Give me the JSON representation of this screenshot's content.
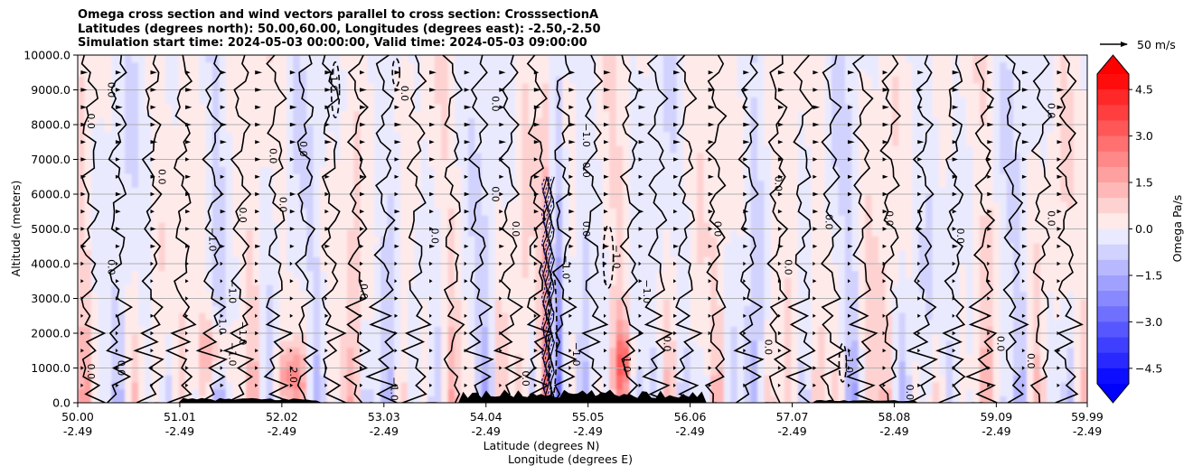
{
  "chart_data": {
    "type": "contour",
    "title_lines": [
      "Omega cross section and wind vectors parallel to cross section: CrosssectionA",
      "Latitudes (degrees north): 50.00,60.00, Longitudes (degrees east): -2.50,-2.50",
      "Simulation start time: 2024-05-03 00:00:00, Valid time: 2024-05-03 09:00:00"
    ],
    "ylabel": "Altitude (meters)",
    "xlabel_lat": "Latitude (degrees N)",
    "xlabel_lon": "Longitude (degrees E)",
    "ylim": [
      0,
      10000
    ],
    "y_ticks": [
      "0.0",
      "1000.0",
      "2000.0",
      "3000.0",
      "4000.0",
      "5000.0",
      "6000.0",
      "7000.0",
      "8000.0",
      "9000.0",
      "10000.0"
    ],
    "y_tick_values": [
      0,
      1000,
      2000,
      3000,
      4000,
      5000,
      6000,
      7000,
      8000,
      9000,
      10000
    ],
    "x_range": [
      50.0,
      59.99
    ],
    "x_ticks": [
      {
        "lat": "50.00",
        "lon": "-2.49",
        "value": 50.0
      },
      {
        "lat": "51.01",
        "lon": "-2.49",
        "value": 51.01
      },
      {
        "lat": "52.02",
        "lon": "-2.49",
        "value": 52.02
      },
      {
        "lat": "53.03",
        "lon": "-2.49",
        "value": 53.03
      },
      {
        "lat": "54.04",
        "lon": "-2.49",
        "value": 54.04
      },
      {
        "lat": "55.05",
        "lon": "-2.49",
        "value": 55.05
      },
      {
        "lat": "56.06",
        "lon": "-2.49",
        "value": 56.06
      },
      {
        "lat": "57.07",
        "lon": "-2.49",
        "value": 57.07
      },
      {
        "lat": "58.08",
        "lon": "-2.49",
        "value": 58.08
      },
      {
        "lat": "59.09",
        "lon": "-2.49",
        "value": 59.09
      },
      {
        "lat": "59.99",
        "lon": "-2.49",
        "value": 59.99
      }
    ],
    "grid": "horizontal",
    "vector_key": {
      "label": "50 m/s"
    },
    "colorbar": {
      "label": "Omega Pa/s",
      "range": [
        -5.0,
        5.0
      ],
      "extend": "both",
      "ticks": [
        {
          "value": 4.5,
          "label": "4.5"
        },
        {
          "value": 3.0,
          "label": "3.0"
        },
        {
          "value": 1.5,
          "label": "1.5"
        },
        {
          "value": 0.0,
          "label": "0.0"
        },
        {
          "value": -1.5,
          "label": "−1.5"
        },
        {
          "value": -3.0,
          "label": "−3.0"
        },
        {
          "value": -4.5,
          "label": "−4.5"
        }
      ],
      "levels": [
        {
          "lo": 4.5,
          "hi": 5.0,
          "color": "#ff0d0d"
        },
        {
          "lo": 4.0,
          "hi": 4.5,
          "color": "#ff2828"
        },
        {
          "lo": 3.5,
          "hi": 4.0,
          "color": "#ff3f3f"
        },
        {
          "lo": 3.0,
          "hi": 3.5,
          "color": "#ff5757"
        },
        {
          "lo": 2.5,
          "hi": 3.0,
          "color": "#ff7070"
        },
        {
          "lo": 2.0,
          "hi": 2.5,
          "color": "#ff8888"
        },
        {
          "lo": 1.5,
          "hi": 2.0,
          "color": "#ffa0a0"
        },
        {
          "lo": 1.0,
          "hi": 1.5,
          "color": "#ffb8b8"
        },
        {
          "lo": 0.5,
          "hi": 1.0,
          "color": "#ffd2d2"
        },
        {
          "lo": 0.0,
          "hi": 0.5,
          "color": "#ffeaea"
        },
        {
          "lo": -0.5,
          "hi": 0.0,
          "color": "#eaeaff"
        },
        {
          "lo": -1.0,
          "hi": -0.5,
          "color": "#d2d2ff"
        },
        {
          "lo": -1.5,
          "hi": -1.0,
          "color": "#b8b8ff"
        },
        {
          "lo": -2.0,
          "hi": -1.5,
          "color": "#a0a0ff"
        },
        {
          "lo": -2.5,
          "hi": -2.0,
          "color": "#8888ff"
        },
        {
          "lo": -3.0,
          "hi": -2.5,
          "color": "#7070ff"
        },
        {
          "lo": -3.5,
          "hi": -3.0,
          "color": "#5757ff"
        },
        {
          "lo": -4.0,
          "hi": -3.5,
          "color": "#3f3fff"
        },
        {
          "lo": -4.5,
          "hi": -4.0,
          "color": "#2828ff"
        },
        {
          "lo": -5.0,
          "hi": -4.5,
          "color": "#0d0dff"
        }
      ],
      "extend_max_color": "#ff0000",
      "extend_min_color": "#0000ff"
    },
    "contour_labels": [
      {
        "lat": 50.3,
        "alt": 9000,
        "text": "0.0"
      },
      {
        "lat": 50.1,
        "alt": 8100,
        "text": "0.0"
      },
      {
        "lat": 50.3,
        "alt": 3900,
        "text": "0.0"
      },
      {
        "lat": 50.1,
        "alt": 900,
        "text": "0.0"
      },
      {
        "lat": 50.8,
        "alt": 6500,
        "text": "0.0"
      },
      {
        "lat": 50.4,
        "alt": 1000,
        "text": "0.0"
      },
      {
        "lat": 51.3,
        "alt": 4700,
        "text": "−1.0"
      },
      {
        "lat": 51.4,
        "alt": 2200,
        "text": "1.0"
      },
      {
        "lat": 51.5,
        "alt": 1400,
        "text": "−1.0"
      },
      {
        "lat": 51.6,
        "alt": 5400,
        "text": "0.0"
      },
      {
        "lat": 51.5,
        "alt": 3200,
        "text": "−1.0"
      },
      {
        "lat": 51.6,
        "alt": 2000,
        "text": "−1.0"
      },
      {
        "lat": 51.9,
        "alt": 7100,
        "text": "0.0"
      },
      {
        "lat": 52.0,
        "alt": 5700,
        "text": "0.0"
      },
      {
        "lat": 52.1,
        "alt": 800,
        "text": "2.0"
      },
      {
        "lat": 52.2,
        "alt": 7300,
        "text": "0.0"
      },
      {
        "lat": 52.5,
        "alt": 9300,
        "text": "−1.0"
      },
      {
        "lat": 52.8,
        "alt": 3200,
        "text": "0.0"
      },
      {
        "lat": 53.1,
        "alt": 400,
        "text": "−1.0"
      },
      {
        "lat": 53.2,
        "alt": 8900,
        "text": "0.0"
      },
      {
        "lat": 53.5,
        "alt": 4800,
        "text": "0.0"
      },
      {
        "lat": 54.1,
        "alt": 8600,
        "text": "0.0"
      },
      {
        "lat": 54.1,
        "alt": 6000,
        "text": "0.0"
      },
      {
        "lat": 54.3,
        "alt": 5000,
        "text": "0.0"
      },
      {
        "lat": 54.4,
        "alt": 700,
        "text": "0.0"
      },
      {
        "lat": 54.8,
        "alt": 3900,
        "text": "−1.0"
      },
      {
        "lat": 54.9,
        "alt": 1400,
        "text": "−1.0"
      },
      {
        "lat": 55.0,
        "alt": 7700,
        "text": "−1.0"
      },
      {
        "lat": 55.0,
        "alt": 6700,
        "text": "0.0"
      },
      {
        "lat": 55.0,
        "alt": 5000,
        "text": "0.0"
      },
      {
        "lat": 55.3,
        "alt": 4200,
        "text": "−1.0"
      },
      {
        "lat": 55.4,
        "alt": 1100,
        "text": "1.0"
      },
      {
        "lat": 55.6,
        "alt": 3200,
        "text": "−1.0"
      },
      {
        "lat": 55.8,
        "alt": 1700,
        "text": "0.0"
      },
      {
        "lat": 56.3,
        "alt": 5000,
        "text": "0.0"
      },
      {
        "lat": 56.8,
        "alt": 1600,
        "text": "0.0"
      },
      {
        "lat": 56.9,
        "alt": 6300,
        "text": "0.0"
      },
      {
        "lat": 57.0,
        "alt": 3900,
        "text": "0.0"
      },
      {
        "lat": 57.4,
        "alt": 5200,
        "text": "0.0"
      },
      {
        "lat": 57.6,
        "alt": 1200,
        "text": "−1.0"
      },
      {
        "lat": 58.0,
        "alt": 5300,
        "text": "0.0"
      },
      {
        "lat": 58.2,
        "alt": 300,
        "text": "0.0"
      },
      {
        "lat": 58.7,
        "alt": 4800,
        "text": "0.0"
      },
      {
        "lat": 59.1,
        "alt": 1700,
        "text": "0.0"
      },
      {
        "lat": 59.4,
        "alt": 1200,
        "text": "0.0"
      },
      {
        "lat": 59.6,
        "alt": 8400,
        "text": "0.0"
      },
      {
        "lat": 59.6,
        "alt": 5300,
        "text": "0.0"
      }
    ]
  }
}
